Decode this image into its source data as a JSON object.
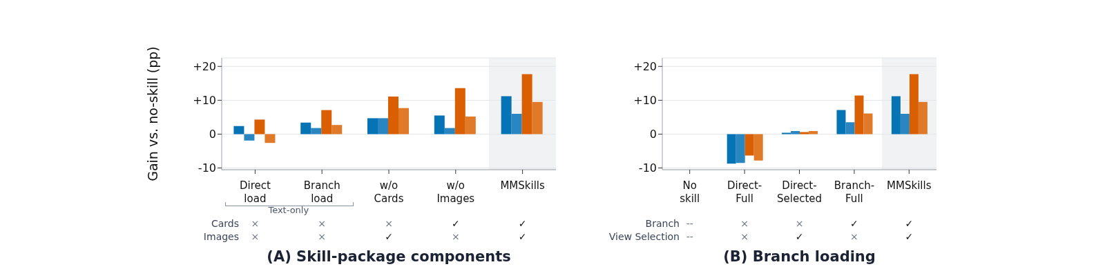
{
  "chart_data": [
    {
      "type": "bar",
      "title": "(A) Skill-package components",
      "ylabel": "Gain vs. no-skill (pp)",
      "categories": [
        "Direct load",
        "Branch load",
        "w/o Cards",
        "w/o Images",
        "MMSkills"
      ],
      "series": [
        {
          "color": "#0673b4",
          "values": [
            2.4,
            3.4,
            4.7,
            5.5,
            11.2
          ]
        },
        {
          "color": "#2a86c0",
          "values": [
            -1.9,
            1.8,
            4.7,
            1.8,
            6.0
          ]
        },
        {
          "color": "#d95f02",
          "values": [
            4.3,
            7.1,
            11.1,
            13.6,
            17.7
          ]
        },
        {
          "color": "#e07a28",
          "values": [
            -2.6,
            2.7,
            7.7,
            5.2,
            9.5
          ]
        }
      ],
      "ylim": [
        -10.5,
        22.5
      ],
      "yticks": [
        {
          "value": -10,
          "label": "-10"
        },
        0,
        {
          "value": 10,
          "label": "+10"
        },
        {
          "value": 20,
          "label": "+20"
        }
      ],
      "grid": "y",
      "bands": [
        {
          "axis": "x",
          "from": "MMSkills",
          "to": "MMSkills",
          "color": "#f1f2f4"
        }
      ],
      "annotations": [
        "Text-only",
        "Cards",
        "×",
        "×",
        "×",
        "✓",
        "✓",
        "Images",
        "×",
        "×",
        "✓",
        "×",
        "✓"
      ]
    },
    {
      "type": "bar",
      "title": "(B) Branch loading",
      "categories": [
        "No skill",
        "Direct-Full",
        "Direct-Selected",
        "Branch-Full",
        "MMSkills"
      ],
      "series": [
        {
          "color": "#0673b4",
          "values": [
            0,
            -8.7,
            0.4,
            7.1,
            11.2
          ]
        },
        {
          "color": "#2a86c0",
          "values": [
            0,
            -8.5,
            0.9,
            3.5,
            6.0
          ]
        },
        {
          "color": "#d95f02",
          "values": [
            0,
            -6.3,
            0.6,
            11.4,
            17.7
          ]
        },
        {
          "color": "#e07a28",
          "values": [
            0,
            -7.8,
            0.9,
            6.1,
            9.5
          ]
        }
      ],
      "ylim": [
        -10.5,
        22.5
      ],
      "yticks": [
        {
          "value": -10,
          "label": "-10"
        },
        0,
        {
          "value": 10,
          "label": "+10"
        },
        {
          "value": 20,
          "label": "+20"
        }
      ],
      "grid": "y",
      "bands": [
        {
          "axis": "x",
          "from": "MMSkills",
          "to": "MMSkills",
          "color": "#f1f2f4"
        }
      ],
      "annotations": [
        "Branch",
        "--",
        "×",
        "×",
        "✓",
        "✓",
        "View Selection",
        "--",
        "×",
        "✓",
        "×",
        "✓"
      ]
    }
  ]
}
